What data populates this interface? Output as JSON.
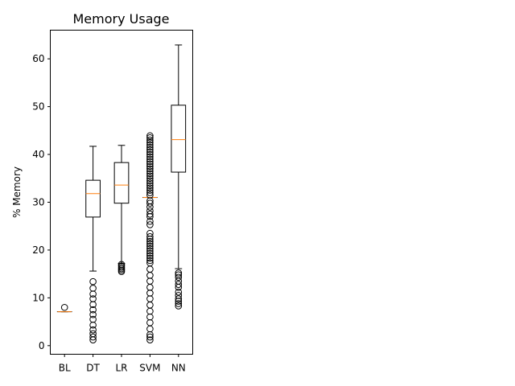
{
  "chart_data": {
    "type": "box",
    "title": "Memory Usage",
    "xlabel": "",
    "ylabel": "% Memory",
    "ylim": [
      -1.8,
      66.0
    ],
    "yticks": [
      0,
      10,
      20,
      30,
      40,
      50,
      60
    ],
    "grid": false,
    "colors": {
      "box": "#000000",
      "median": "#ff7f0e",
      "flier": "#000000"
    },
    "categories": [
      "BL",
      "DT",
      "LR",
      "SVM",
      "NN"
    ],
    "boxes": [
      {
        "name": "BL",
        "whislo": 7.1,
        "q1": 7.1,
        "median": 7.1,
        "q3": 7.1,
        "whishi": 7.1,
        "fliers": [
          8.0
        ]
      },
      {
        "name": "DT",
        "whislo": 15.6,
        "q1": 26.9,
        "median": 31.8,
        "q3": 34.6,
        "whishi": 41.7,
        "fliers": [
          1.2,
          1.8,
          2.5,
          3.3,
          4.3,
          5.5,
          6.5,
          7.5,
          8.6,
          9.8,
          10.8,
          12.0,
          13.4
        ]
      },
      {
        "name": "LR",
        "whislo": 17.2,
        "q1": 29.8,
        "median": 33.6,
        "q3": 38.3,
        "whishi": 41.9,
        "fliers": [
          15.5,
          15.8,
          16.1,
          16.4,
          16.7,
          17.0
        ]
      },
      {
        "name": "SVM",
        "whislo": 31.0,
        "q1": 31.0,
        "median": 31.0,
        "q3": 31.0,
        "whishi": 31.0,
        "fliers": [
          1.2,
          1.8,
          2.3,
          3.5,
          4.8,
          6.0,
          7.2,
          8.5,
          9.8,
          11.0,
          12.2,
          13.5,
          14.7,
          16.0,
          17.3,
          17.8,
          18.3,
          18.8,
          19.3,
          19.8,
          20.3,
          20.8,
          21.3,
          21.8,
          22.3,
          22.8,
          23.5,
          25.3,
          26.0,
          27.0,
          27.5,
          28.2,
          29.0,
          29.8,
          30.3,
          31.5,
          32.0,
          32.5,
          33.0,
          33.5,
          34.0,
          34.5,
          35.0,
          35.5,
          36.0,
          36.5,
          37.0,
          37.5,
          38.0,
          38.5,
          39.0,
          39.5,
          40.0,
          40.5,
          41.0,
          41.5,
          42.0,
          42.5,
          43.0,
          43.5,
          43.9
        ]
      },
      {
        "name": "NN",
        "whislo": 16.1,
        "q1": 36.3,
        "median": 43.1,
        "q3": 50.3,
        "whishi": 62.9,
        "fliers": [
          8.3,
          8.8,
          9.3,
          9.8,
          10.5,
          11.2,
          12.2,
          12.8,
          13.5,
          14.3,
          14.8,
          15.2
        ]
      }
    ]
  }
}
